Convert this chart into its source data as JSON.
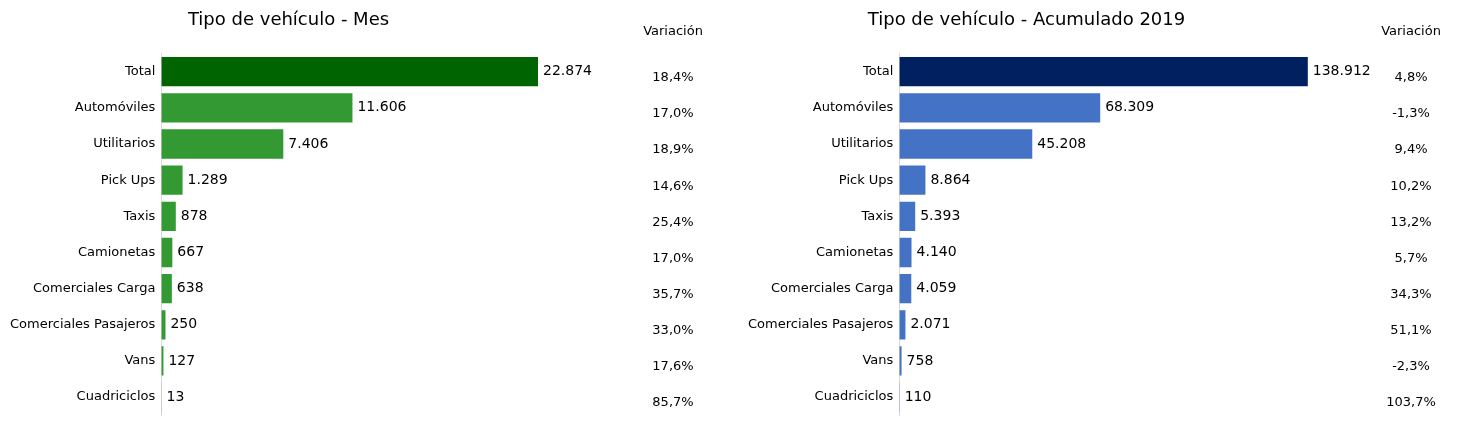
{
  "chart_data": [
    {
      "type": "bar",
      "orientation": "horizontal",
      "title": "Tipo de vehículo - Mes",
      "categories": [
        "Total",
        "Automóviles",
        "Utilitarios",
        "Pick Ups",
        "Taxis",
        "Camionetas",
        "Comerciales Carga",
        "Comerciales Pasajeros",
        "Vans",
        "Cuadriciclos"
      ],
      "values": [
        22874,
        11606,
        7406,
        1289,
        878,
        667,
        638,
        250,
        127,
        13
      ],
      "colors": [
        "#006400",
        "#339933",
        "#339933",
        "#339933",
        "#339933",
        "#339933",
        "#339933",
        "#339933",
        "#339933",
        "#339933"
      ],
      "value_labels": [
        "22.874",
        "11.606",
        "7.406",
        "1.289",
        "878",
        "667",
        "638",
        "250",
        "127",
        "13"
      ],
      "grid": false,
      "legend": false,
      "tick_labels": "y",
      "annotations": [
        "Variación",
        "18,4%",
        "17,0%",
        "18,9%",
        "14,6%",
        "25,4%",
        "17,0%",
        "35,7%",
        "33,0%",
        "17,6%",
        "85,7%"
      ]
    },
    {
      "type": "bar",
      "orientation": "horizontal",
      "title": "Tipo de vehículo - Acumulado 2019",
      "categories": [
        "Total",
        "Automóviles",
        "Utilitarios",
        "Pick Ups",
        "Taxis",
        "Camionetas",
        "Comerciales Carga",
        "Comerciales Pasajeros",
        "Vans",
        "Cuadriciclos"
      ],
      "values": [
        138912,
        68309,
        45208,
        8864,
        5393,
        4140,
        4059,
        2071,
        758,
        110
      ],
      "colors": [
        "#002060",
        "#4472c4",
        "#4472c4",
        "#4472c4",
        "#4472c4",
        "#4472c4",
        "#4472c4",
        "#4472c4",
        "#4472c4",
        "#4472c4"
      ],
      "value_labels": [
        "138.912",
        "68.309",
        "45.208",
        "8.864",
        "5.393",
        "4.140",
        "4.059",
        "2.071",
        "758",
        "110"
      ],
      "grid": false,
      "legend": false,
      "tick_labels": "y",
      "annotations": [
        "Variación",
        "4,8%",
        "-1,3%",
        "9,4%",
        "10,2%",
        "13,2%",
        "5,7%",
        "34,3%",
        "51,1%",
        "-2,3%",
        "103,7%"
      ]
    }
  ]
}
